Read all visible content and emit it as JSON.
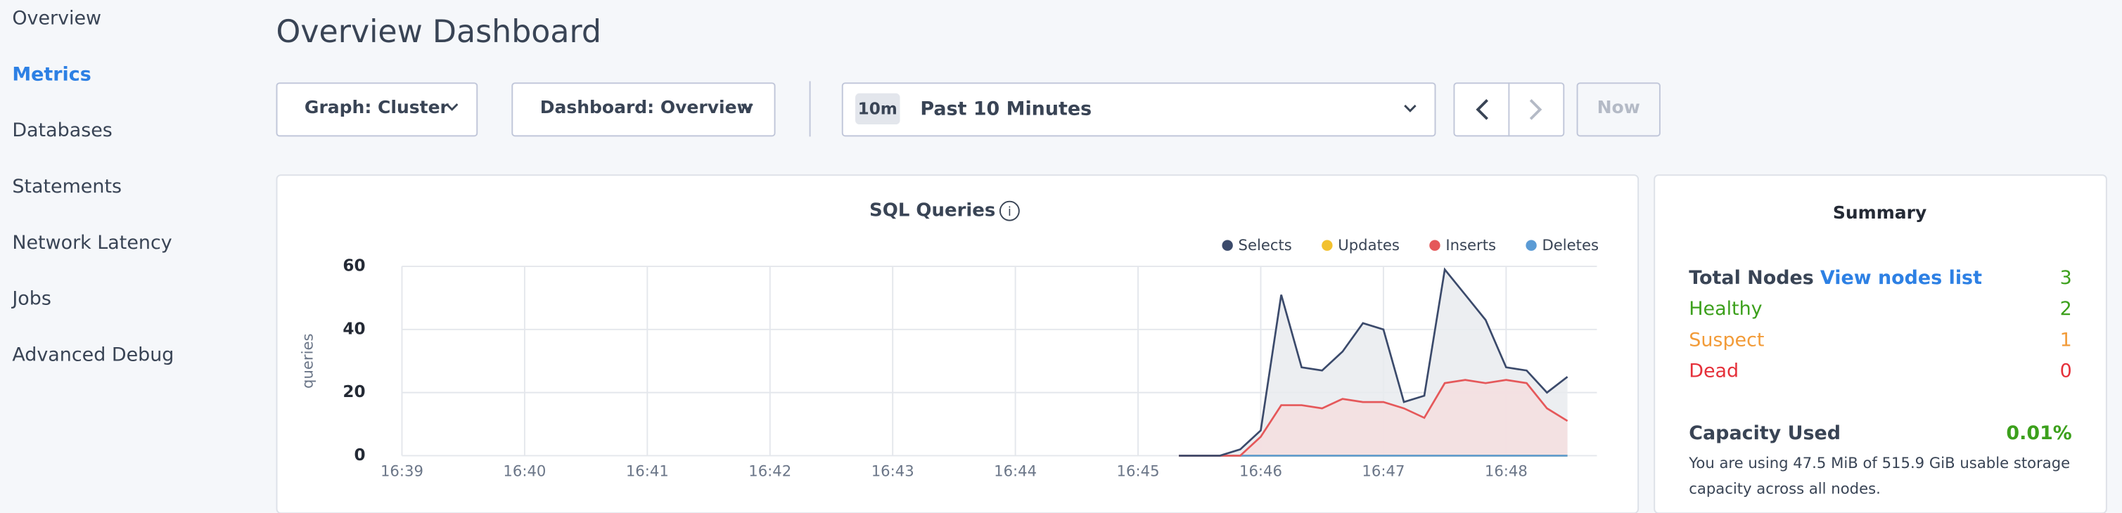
{
  "sidebar": {
    "items": [
      "Overview",
      "Metrics",
      "Databases",
      "Statements",
      "Network Latency",
      "Jobs",
      "Advanced Debug"
    ]
  },
  "header": {
    "title": "Overview Dashboard"
  },
  "toolbar": {
    "graph": "Graph: Cluster",
    "dashboard": "Dashboard: Overview",
    "time_badge": "10m",
    "time_range": "Past 10 Minutes",
    "now": "Now"
  },
  "chart_data": {
    "type": "line",
    "title": "SQL Queries",
    "y_label": "queries",
    "x": [
      1005.333,
      1005.5,
      1005.667,
      1005.833,
      1006,
      1006.167,
      1006.333,
      1006.5,
      1006.667,
      1006.833,
      1007,
      1007.167,
      1007.333,
      1007.5,
      1007.667,
      1007.833,
      1008,
      1008.167,
      1008.333,
      1008.5
    ],
    "series": [
      {
        "name": "Selects",
        "color": "#3b4a6b",
        "area": "#e9ebee",
        "values": [
          0,
          0,
          0,
          2,
          8,
          51,
          28,
          27,
          33,
          42,
          40,
          17,
          19,
          59,
          51,
          43,
          28,
          27,
          20,
          25
        ]
      },
      {
        "name": "Updates",
        "color": "#f2c12e",
        "values": [
          0,
          0,
          0,
          0,
          0,
          0,
          0,
          0,
          0,
          0,
          0,
          0,
          0,
          0,
          0,
          0,
          0,
          0,
          0,
          0
        ]
      },
      {
        "name": "Inserts",
        "color": "#e5585a",
        "area": "#f5dedf",
        "values": [
          0,
          0,
          0,
          0,
          6,
          16,
          16,
          15,
          18,
          17,
          17,
          15,
          12,
          23,
          24,
          23,
          24,
          23,
          15,
          11
        ]
      },
      {
        "name": "Deletes",
        "color": "#5b9bd5",
        "values": [
          0,
          0,
          0,
          0,
          0,
          0,
          0,
          0,
          0,
          0,
          0,
          0,
          0,
          0,
          0,
          0,
          0,
          0,
          0,
          0
        ]
      }
    ],
    "xlim": [
      999,
      1008.74
    ],
    "xticks": [
      {
        "value": 999,
        "label": "16:39"
      },
      {
        "value": 1000,
        "label": "16:40"
      },
      {
        "value": 1001,
        "label": "16:41"
      },
      {
        "value": 1002,
        "label": "16:42"
      },
      {
        "value": 1003,
        "label": "16:43"
      },
      {
        "value": 1004,
        "label": "16:44"
      },
      {
        "value": 1005,
        "label": "16:45"
      },
      {
        "value": 1006,
        "label": "16:46"
      },
      {
        "value": 1007,
        "label": "16:47"
      },
      {
        "value": 1008,
        "label": "16:48"
      }
    ],
    "ylim": [
      0,
      60
    ],
    "yticks": [
      0,
      20,
      40,
      60
    ],
    "grid": true
  },
  "summary": {
    "title": "Summary",
    "total_label": "Total Nodes",
    "link": "View nodes list",
    "total": 3,
    "rows": [
      {
        "label": "Healthy",
        "value": 2,
        "color": "#3ca01c"
      },
      {
        "label": "Suspect",
        "value": 1,
        "color": "#f29b38"
      },
      {
        "label": "Dead",
        "value": 0,
        "color": "#e5303a"
      }
    ],
    "capacity_label": "Capacity Used",
    "capacity_value": "0.01%",
    "note_1": "You are using 47.5 MiB of 515.9 GiB usable storage",
    "note_2": "capacity across all nodes."
  }
}
